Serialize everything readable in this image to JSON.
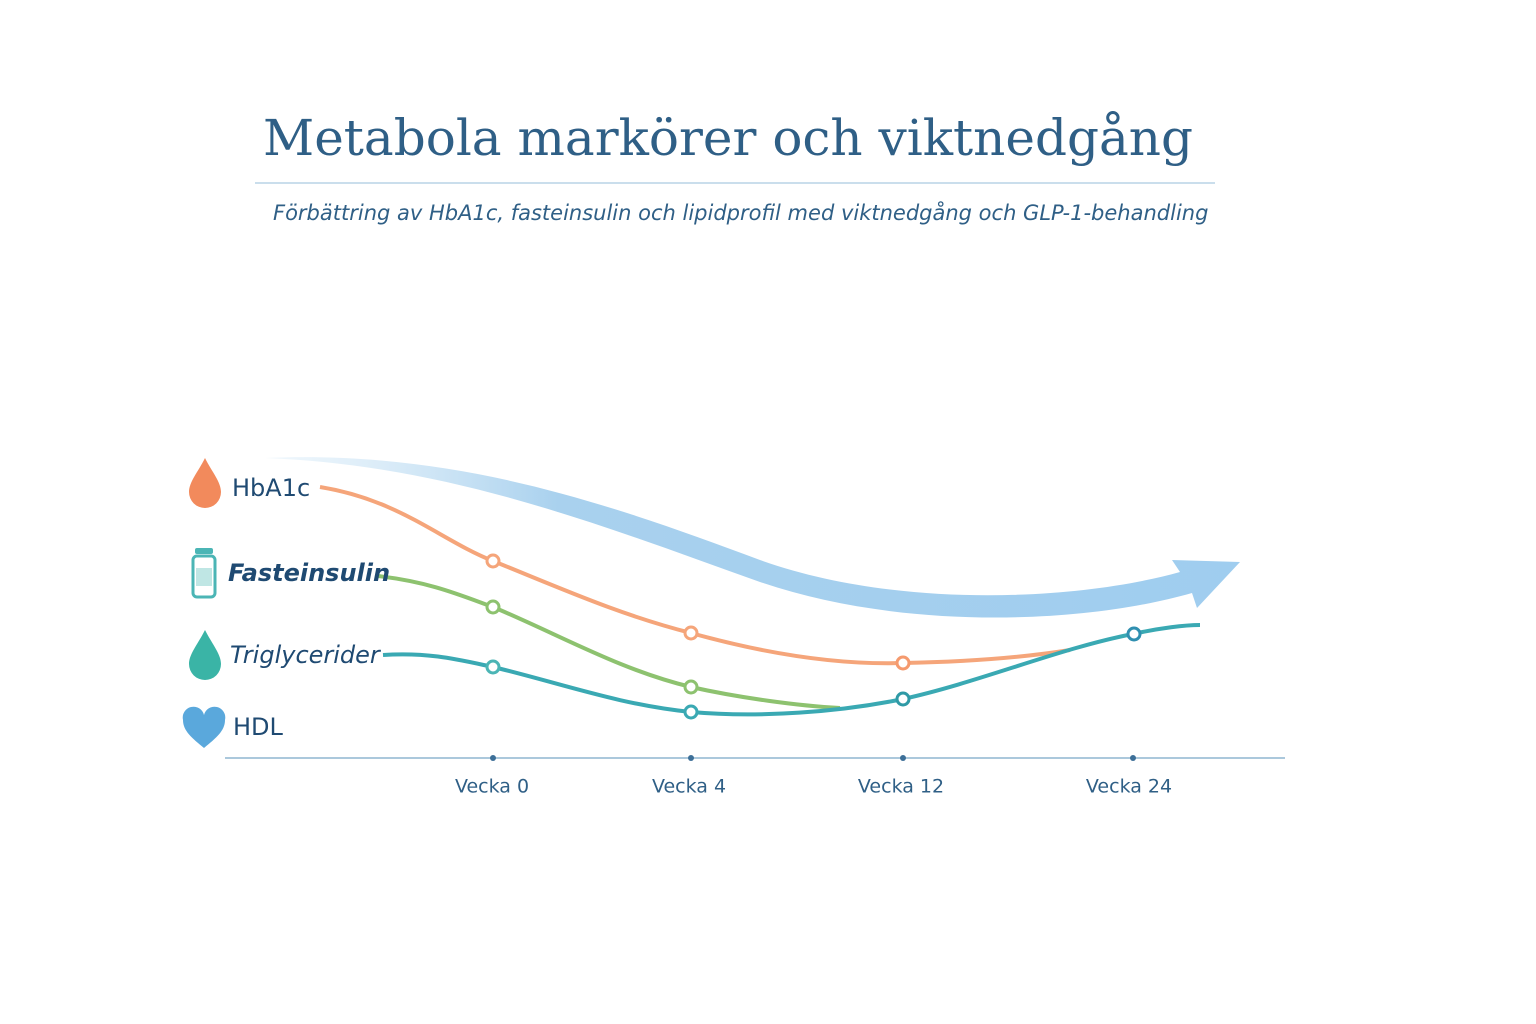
{
  "header": {
    "title": "Metabola markörer och viktnedgång",
    "subtitle": "Förbättring av HbA1c, fasteinsulin och lipidprofil med viktnedgång och GLP-1-behandling"
  },
  "legend": [
    "HbA1c",
    "Fasteinsulin",
    "Triglycerider",
    "HDL"
  ],
  "axis": {
    "labels": [
      "Vecka 0",
      "Vecka 4",
      "Vecka 12",
      "Vecka 24"
    ]
  }
}
